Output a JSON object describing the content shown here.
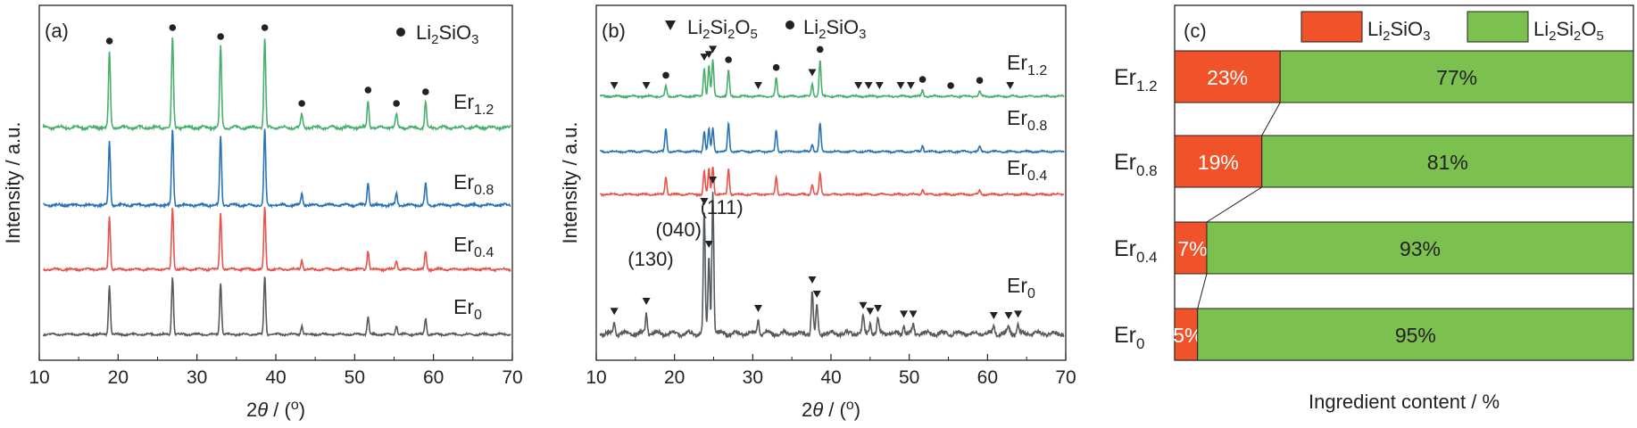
{
  "colors": {
    "green": "#49b06b",
    "blue": "#2a74b6",
    "red": "#e8534a",
    "gray": "#555a5f",
    "li2sio3": "#f0522a",
    "li2si2o5": "#7cc04f"
  },
  "chart_data": [
    {
      "panel": "(a)",
      "type": "line",
      "xlabel": "2θ / (°)",
      "ylabel": "Intensity / a.u.",
      "xlim": [
        10,
        70
      ],
      "xticks": [
        "10",
        "20",
        "30",
        "40",
        "50",
        "60",
        "70"
      ],
      "legend": {
        "marker": "circle",
        "label": "Li2SiO3"
      },
      "series": [
        {
          "name": "Er1.2",
          "label_base": "Er",
          "label_sub": "1.2",
          "color": "green",
          "peaks": [
            [
              18.9,
              0.85
            ],
            [
              26.9,
              1.0
            ],
            [
              33.0,
              0.9
            ],
            [
              38.6,
              1.0
            ],
            [
              43.3,
              0.15
            ],
            [
              51.7,
              0.3
            ],
            [
              55.3,
              0.15
            ],
            [
              59.0,
              0.28
            ]
          ]
        },
        {
          "name": "Er0.8",
          "label_base": "Er",
          "label_sub": "0.8",
          "color": "blue",
          "peaks": [
            [
              18.9,
              0.85
            ],
            [
              26.9,
              1.0
            ],
            [
              33.0,
              0.9
            ],
            [
              38.6,
              1.0
            ],
            [
              43.3,
              0.15
            ],
            [
              51.7,
              0.3
            ],
            [
              55.3,
              0.15
            ],
            [
              59.0,
              0.28
            ]
          ]
        },
        {
          "name": "Er0.4",
          "label_base": "Er",
          "label_sub": "0.4",
          "color": "red",
          "peaks": [
            [
              18.9,
              0.85
            ],
            [
              26.9,
              1.0
            ],
            [
              33.0,
              0.9
            ],
            [
              38.6,
              1.0
            ],
            [
              43.3,
              0.15
            ],
            [
              51.7,
              0.3
            ],
            [
              55.3,
              0.15
            ],
            [
              59.0,
              0.28
            ]
          ]
        },
        {
          "name": "Er0",
          "label_base": "Er",
          "label_sub": "0",
          "color": "gray",
          "peaks": [
            [
              18.9,
              0.85
            ],
            [
              26.9,
              1.0
            ],
            [
              33.0,
              0.9
            ],
            [
              38.6,
              1.0
            ],
            [
              43.3,
              0.15
            ],
            [
              51.7,
              0.3
            ],
            [
              55.3,
              0.15
            ],
            [
              59.0,
              0.28
            ]
          ]
        }
      ],
      "markers": [
        {
          "series": "Er1.2",
          "symbol": "circle",
          "x": [
            18.9,
            26.9,
            33.0,
            38.6,
            43.3,
            51.7,
            55.3,
            59.0
          ]
        }
      ]
    },
    {
      "panel": "(b)",
      "type": "line",
      "xlabel": "2θ / (°)",
      "ylabel": "Intensity / a.u.",
      "xlim": [
        10,
        70
      ],
      "xticks": [
        "10",
        "20",
        "30",
        "40",
        "50",
        "60",
        "70"
      ],
      "legend": [
        {
          "marker": "triangle-down",
          "label": "Li2Si2O5"
        },
        {
          "marker": "circle",
          "label": "Li2SiO3"
        }
      ],
      "series": [
        {
          "name": "Er1.2",
          "label_base": "Er",
          "label_sub": "1.2",
          "color": "green",
          "peaks": [
            [
              18.9,
              0.2
            ],
            [
              23.8,
              0.55
            ],
            [
              24.4,
              0.6
            ],
            [
              24.9,
              0.7
            ],
            [
              26.9,
              0.5
            ],
            [
              33.0,
              0.35
            ],
            [
              37.6,
              0.25
            ],
            [
              38.6,
              0.7
            ],
            [
              51.7,
              0.12
            ],
            [
              59.0,
              0.1
            ]
          ]
        },
        {
          "name": "Er0.8",
          "label_base": "Er",
          "label_sub": "0.8",
          "color": "blue",
          "peaks": [
            [
              18.9,
              0.45
            ],
            [
              23.8,
              0.4
            ],
            [
              24.4,
              0.45
            ],
            [
              24.9,
              0.45
            ],
            [
              26.9,
              0.55
            ],
            [
              33.0,
              0.4
            ],
            [
              37.6,
              0.15
            ],
            [
              38.6,
              0.55
            ],
            [
              51.7,
              0.12
            ],
            [
              59.0,
              0.1
            ]
          ]
        },
        {
          "name": "Er0.4",
          "label_base": "Er",
          "label_sub": "0.4",
          "color": "red",
          "peaks": [
            [
              18.9,
              0.35
            ],
            [
              23.8,
              0.45
            ],
            [
              24.4,
              0.5
            ],
            [
              24.9,
              0.55
            ],
            [
              26.9,
              0.5
            ],
            [
              33.0,
              0.35
            ],
            [
              37.6,
              0.2
            ],
            [
              38.6,
              0.4
            ],
            [
              51.7,
              0.1
            ],
            [
              59.0,
              0.08
            ]
          ]
        },
        {
          "name": "Er0",
          "label_base": "Er",
          "label_sub": "0",
          "color": "gray",
          "peaks": [
            [
              12.3,
              0.08
            ],
            [
              16.4,
              0.15
            ],
            [
              23.8,
              0.85
            ],
            [
              24.4,
              0.55
            ],
            [
              24.9,
              1.0
            ],
            [
              30.7,
              0.1
            ],
            [
              37.6,
              0.3
            ],
            [
              38.2,
              0.2
            ],
            [
              44.1,
              0.12
            ],
            [
              45.0,
              0.08
            ],
            [
              46.0,
              0.1
            ],
            [
              49.3,
              0.06
            ],
            [
              50.5,
              0.06
            ],
            [
              60.8,
              0.05
            ],
            [
              62.7,
              0.05
            ],
            [
              63.9,
              0.06
            ]
          ]
        }
      ],
      "markers": [
        {
          "series": "Er1.2",
          "symbol": "triangle-down",
          "x": [
            12.3,
            16.4,
            23.8,
            24.4,
            24.9,
            30.7,
            37.6,
            43.5,
            44.8,
            46.2,
            48.9,
            50.2,
            62.9
          ]
        },
        {
          "series": "Er1.2",
          "symbol": "circle",
          "x": [
            18.9,
            26.9,
            33.0,
            38.6,
            51.7,
            55.3,
            59.0
          ]
        },
        {
          "series": "Er0",
          "symbol": "triangle-down",
          "x": [
            12.3,
            16.4,
            23.8,
            24.4,
            24.9,
            30.7,
            37.6,
            38.2,
            44.1,
            45.0,
            46.0,
            49.3,
            50.5,
            60.8,
            62.7,
            63.9
          ]
        }
      ],
      "annotations": [
        {
          "text": "(130)",
          "x": 23.8
        },
        {
          "text": "(040)",
          "x": 24.4
        },
        {
          "text": "(111)",
          "x": 24.9
        }
      ]
    },
    {
      "panel": "(c)",
      "type": "bar",
      "orientation": "horizontal",
      "stacked": true,
      "xlabel": "Ingredient content / %",
      "categories": [
        "Er1.2",
        "Er0.8",
        "Er0.4",
        "Er0"
      ],
      "category_labels": [
        {
          "base": "Er",
          "sub": "1.2"
        },
        {
          "base": "Er",
          "sub": "0.8"
        },
        {
          "base": "Er",
          "sub": "0.4"
        },
        {
          "base": "Er",
          "sub": "0"
        }
      ],
      "series": [
        {
          "name": "Li2SiO3",
          "color": "li2sio3",
          "values": [
            23,
            19,
            7,
            5
          ],
          "labels": [
            "23%",
            "19%",
            "7%",
            "5%"
          ]
        },
        {
          "name": "Li2Si2O5",
          "color": "li2si2o5",
          "values": [
            77,
            81,
            93,
            95
          ],
          "labels": [
            "77%",
            "81%",
            "93%",
            "95%"
          ]
        }
      ],
      "xlim": [
        0,
        100
      ]
    }
  ]
}
